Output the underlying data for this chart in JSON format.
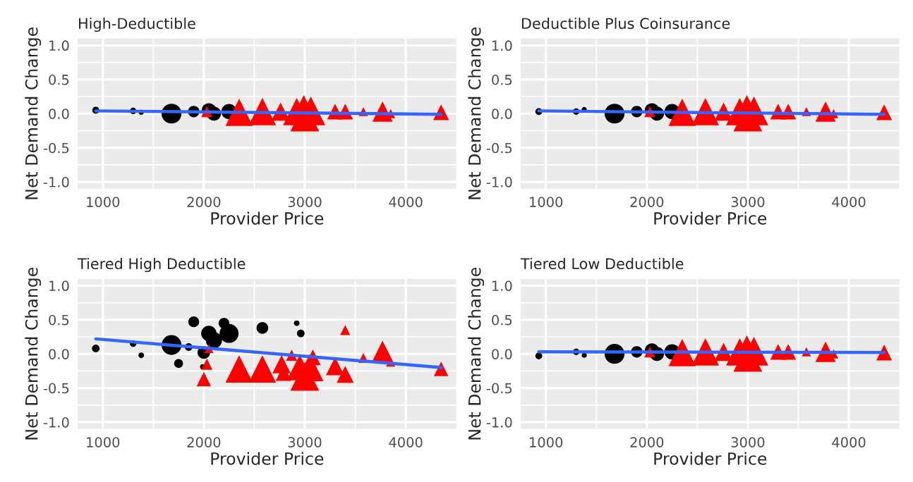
{
  "chart_data": [
    {
      "type": "bubble",
      "title": "High-Deductible",
      "xlabel": "Provider Price",
      "ylabel": "Net Demand Change",
      "xlim": [
        750,
        4500
      ],
      "xticks": [
        1000,
        2000,
        3000,
        4000
      ],
      "ylim": [
        -1.1,
        1.1
      ],
      "yticks": [
        {
          "value": -1,
          "label": "-1.0"
        },
        {
          "value": -0.5,
          "label": "-0.5"
        },
        {
          "value": 0,
          "label": "0.0"
        },
        {
          "value": 0.5,
          "label": "0.5"
        },
        {
          "value": 1,
          "label": "1.0"
        }
      ],
      "grid": true,
      "series": [
        {
          "color": "#000000",
          "marker": "circle",
          "x": [
            930,
            1300,
            1380,
            1680,
            1900,
            2050,
            2100,
            2250
          ],
          "values": [
            0.05,
            0.04,
            0.02,
            0.0,
            0.03,
            0.05,
            0.0,
            0.03
          ],
          "sizes": [
            0.09,
            0.08,
            0.05,
            0.75,
            0.25,
            0.38,
            0.38,
            0.45
          ]
        },
        {
          "color": "#ff0000",
          "marker": "triangle",
          "x": [
            2030,
            2350,
            2580,
            2760,
            2920,
            2990,
            3060,
            3000,
            3300,
            3400,
            3580,
            3770,
            3850,
            4350
          ],
          "values": [
            0.03,
            0.02,
            0.03,
            0.03,
            0.03,
            0.06,
            0.04,
            -0.05,
            0.03,
            0.03,
            0.03,
            0.03,
            0.0,
            0.02
          ],
          "sizes": [
            0.15,
            0.9,
            0.9,
            0.4,
            0.9,
            1.0,
            1.0,
            1.0,
            0.3,
            0.3,
            0.1,
            0.5,
            0.1,
            0.3
          ]
        },
        {
          "type": "line",
          "color": "#3366ff",
          "marker": "none",
          "x": [
            930,
            4350
          ],
          "values": [
            0.04,
            -0.01
          ]
        }
      ]
    },
    {
      "type": "bubble",
      "title": "Deductible Plus Coinsurance",
      "xlabel": "Provider Price",
      "ylabel": "Net Demand Change",
      "xlim": [
        750,
        4500
      ],
      "xticks": [
        1000,
        2000,
        3000,
        4000
      ],
      "ylim": [
        -1.1,
        1.1
      ],
      "yticks": [
        {
          "value": -1,
          "label": "-1.0"
        },
        {
          "value": -0.5,
          "label": "-0.5"
        },
        {
          "value": 0,
          "label": "0.0"
        },
        {
          "value": 0.5,
          "label": "0.5"
        },
        {
          "value": 1,
          "label": "1.0"
        }
      ],
      "grid": true,
      "series": [
        {
          "color": "#000000",
          "marker": "circle",
          "x": [
            930,
            1300,
            1380,
            1680,
            1900,
            2050,
            2100,
            2250
          ],
          "values": [
            0.03,
            0.03,
            0.06,
            0.0,
            0.03,
            0.05,
            0.0,
            0.03
          ],
          "sizes": [
            0.09,
            0.08,
            0.05,
            0.75,
            0.25,
            0.38,
            0.38,
            0.45
          ]
        },
        {
          "color": "#ff0000",
          "marker": "triangle",
          "x": [
            2030,
            2350,
            2580,
            2760,
            2920,
            2990,
            3060,
            3000,
            3300,
            3400,
            3580,
            3770,
            3850,
            4350
          ],
          "values": [
            0.03,
            0.02,
            0.03,
            0.03,
            0.03,
            0.06,
            0.04,
            -0.05,
            0.03,
            0.03,
            0.03,
            0.03,
            0.0,
            0.02
          ],
          "sizes": [
            0.15,
            0.9,
            0.9,
            0.4,
            0.9,
            1.0,
            1.0,
            1.0,
            0.3,
            0.3,
            0.1,
            0.5,
            0.1,
            0.3
          ]
        },
        {
          "type": "line",
          "color": "#3366ff",
          "marker": "none",
          "x": [
            930,
            4350
          ],
          "values": [
            0.04,
            -0.01
          ]
        }
      ]
    },
    {
      "type": "bubble",
      "title": "Tiered High Deductible",
      "xlabel": "Provider Price",
      "ylabel": "Net Demand Change",
      "xlim": [
        750,
        4500
      ],
      "xticks": [
        1000,
        2000,
        3000,
        4000
      ],
      "ylim": [
        -1.1,
        1.1
      ],
      "yticks": [
        {
          "value": -1,
          "label": "-1.0"
        },
        {
          "value": -0.5,
          "label": "-0.5"
        },
        {
          "value": 0,
          "label": "0.0"
        },
        {
          "value": 0.5,
          "label": "0.5"
        },
        {
          "value": 1,
          "label": "1.0"
        }
      ],
      "grid": true,
      "series": [
        {
          "color": "#000000",
          "marker": "circle",
          "x": [
            930,
            1300,
            1380,
            1680,
            1750,
            1850,
            1900,
            1990,
            2000,
            2050,
            2100,
            2200,
            2250,
            2580,
            2920,
            2960
          ],
          "values": [
            0.08,
            0.15,
            -0.02,
            0.13,
            -0.14,
            0.1,
            0.47,
            -0.19,
            0.02,
            0.3,
            0.2,
            0.45,
            0.3,
            0.38,
            0.45,
            0.3
          ],
          "sizes": [
            0.11,
            0.08,
            0.06,
            0.75,
            0.15,
            0.11,
            0.22,
            0.06,
            0.3,
            0.45,
            0.5,
            0.22,
            0.68,
            0.26,
            0.06,
            0.11
          ]
        },
        {
          "color": "#ff0000",
          "marker": "triangle",
          "x": [
            2000,
            2030,
            2050,
            2350,
            2580,
            2770,
            2790,
            2870,
            2950,
            3000,
            3050,
            3080,
            3300,
            3400,
            3400,
            3580,
            3770,
            3850,
            4350
          ],
          "values": [
            -0.37,
            -0.15,
            0.08,
            -0.22,
            -0.22,
            -0.15,
            -0.28,
            -0.02,
            -0.2,
            -0.33,
            -0.2,
            -0.05,
            -0.18,
            -0.3,
            0.35,
            -0.06,
            0.03,
            -0.12,
            -0.22
          ],
          "sizes": [
            0.25,
            0.15,
            0.1,
            0.9,
            0.9,
            0.4,
            0.3,
            0.15,
            0.8,
            1.0,
            0.9,
            0.3,
            0.4,
            0.35,
            0.12,
            0.12,
            0.6,
            0.1,
            0.25
          ]
        },
        {
          "type": "line",
          "color": "#3366ff",
          "marker": "none",
          "x": [
            930,
            4350
          ],
          "values": [
            0.22,
            -0.2
          ]
        }
      ]
    },
    {
      "type": "bubble",
      "title": "Tiered Low Deductible",
      "xlabel": "Provider Price",
      "ylabel": "Net Demand Change",
      "xlim": [
        750,
        4500
      ],
      "xticks": [
        1000,
        2000,
        3000,
        4000
      ],
      "ylim": [
        -1.1,
        1.1
      ],
      "yticks": [
        {
          "value": -1,
          "label": "-1.0"
        },
        {
          "value": -0.5,
          "label": "-0.5"
        },
        {
          "value": 0,
          "label": "0.0"
        },
        {
          "value": 0.5,
          "label": "0.5"
        },
        {
          "value": 1,
          "label": "1.0"
        }
      ],
      "grid": true,
      "series": [
        {
          "color": "#000000",
          "marker": "circle",
          "x": [
            930,
            1300,
            1380,
            1680,
            1900,
            2050,
            2100,
            2250
          ],
          "values": [
            -0.03,
            0.03,
            -0.02,
            0.0,
            0.03,
            0.05,
            0.0,
            0.03
          ],
          "sizes": [
            0.09,
            0.08,
            0.05,
            0.75,
            0.25,
            0.38,
            0.38,
            0.45
          ]
        },
        {
          "color": "#ff0000",
          "marker": "triangle",
          "x": [
            2030,
            2350,
            2580,
            2760,
            2920,
            2990,
            3060,
            3000,
            3300,
            3400,
            3580,
            3770,
            3850,
            4350
          ],
          "values": [
            0.03,
            0.02,
            0.03,
            0.03,
            0.03,
            0.06,
            0.04,
            -0.05,
            0.03,
            0.03,
            0.03,
            0.03,
            0.0,
            0.02
          ],
          "sizes": [
            0.15,
            0.9,
            0.9,
            0.4,
            0.9,
            1.0,
            1.0,
            1.0,
            0.3,
            0.3,
            0.1,
            0.5,
            0.1,
            0.3
          ]
        },
        {
          "type": "line",
          "color": "#3366ff",
          "marker": "none",
          "x": [
            930,
            4350
          ],
          "values": [
            0.03,
            0.02
          ]
        }
      ]
    }
  ]
}
